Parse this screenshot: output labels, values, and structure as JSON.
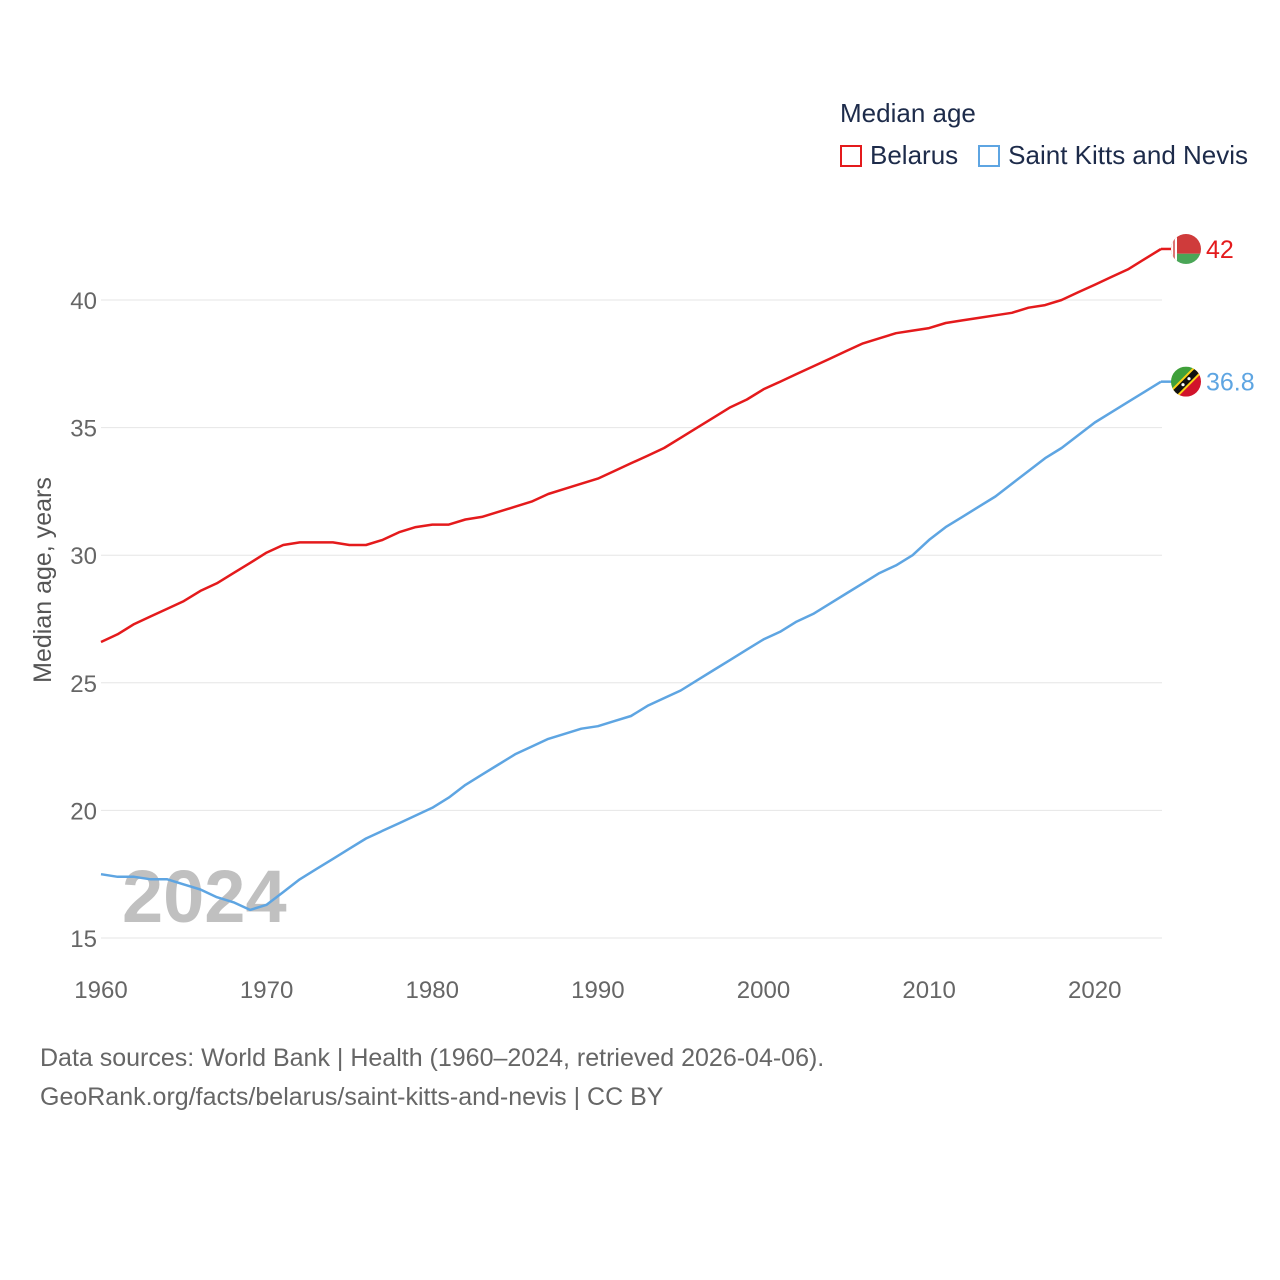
{
  "legend": {
    "title": "Median age"
  },
  "footer": {
    "line1": "Data sources: World Bank | Health (1960–2024, retrieved 2026-04-06).",
    "line2": "GeoRank.org/facts/belarus/saint-kitts-and-nevis | CC BY"
  },
  "chart_data": {
    "type": "line",
    "title": "Median age",
    "ylabel": "Median age, years",
    "xlabel": "",
    "year_watermark": "2024",
    "xlim": [
      1960,
      2024
    ],
    "ylim": [
      15,
      43
    ],
    "x_ticks": [
      1960,
      1970,
      1980,
      1990,
      2000,
      2010,
      2020
    ],
    "y_ticks": [
      15,
      20,
      25,
      30,
      35,
      40
    ],
    "grid": true,
    "legend_position": "top-right",
    "series": [
      {
        "name": "Belarus",
        "color": "#e41a1c",
        "end_label": "42",
        "x": [
          1960,
          1961,
          1962,
          1963,
          1964,
          1965,
          1966,
          1967,
          1968,
          1969,
          1970,
          1971,
          1972,
          1973,
          1974,
          1975,
          1976,
          1977,
          1978,
          1979,
          1980,
          1981,
          1982,
          1983,
          1984,
          1985,
          1986,
          1987,
          1988,
          1989,
          1990,
          1991,
          1992,
          1993,
          1994,
          1995,
          1996,
          1997,
          1998,
          1999,
          2000,
          2001,
          2002,
          2003,
          2004,
          2005,
          2006,
          2007,
          2008,
          2009,
          2010,
          2011,
          2012,
          2013,
          2014,
          2015,
          2016,
          2017,
          2018,
          2019,
          2020,
          2021,
          2022,
          2023,
          2024
        ],
        "values": [
          26.6,
          26.9,
          27.3,
          27.6,
          27.9,
          28.2,
          28.6,
          28.9,
          29.3,
          29.7,
          30.1,
          30.4,
          30.5,
          30.5,
          30.5,
          30.4,
          30.4,
          30.6,
          30.9,
          31.1,
          31.2,
          31.2,
          31.4,
          31.5,
          31.7,
          31.9,
          32.1,
          32.4,
          32.6,
          32.8,
          33.0,
          33.3,
          33.6,
          33.9,
          34.2,
          34.6,
          35.0,
          35.4,
          35.8,
          36.1,
          36.5,
          36.8,
          37.1,
          37.4,
          37.7,
          38.0,
          38.3,
          38.5,
          38.7,
          38.8,
          38.9,
          39.1,
          39.2,
          39.3,
          39.4,
          39.5,
          39.7,
          39.8,
          40.0,
          40.3,
          40.6,
          40.9,
          41.2,
          41.6,
          42.0
        ]
      },
      {
        "name": "Saint Kitts and Nevis",
        "color": "#5ea5e2",
        "end_label": "36.8",
        "x": [
          1960,
          1961,
          1962,
          1963,
          1964,
          1965,
          1966,
          1967,
          1968,
          1969,
          1970,
          1971,
          1972,
          1973,
          1974,
          1975,
          1976,
          1977,
          1978,
          1979,
          1980,
          1981,
          1982,
          1983,
          1984,
          1985,
          1986,
          1987,
          1988,
          1989,
          1990,
          1991,
          1992,
          1993,
          1994,
          1995,
          1996,
          1997,
          1998,
          1999,
          2000,
          2001,
          2002,
          2003,
          2004,
          2005,
          2006,
          2007,
          2008,
          2009,
          2010,
          2011,
          2012,
          2013,
          2014,
          2015,
          2016,
          2017,
          2018,
          2019,
          2020,
          2021,
          2022,
          2023,
          2024
        ],
        "values": [
          17.5,
          17.4,
          17.4,
          17.3,
          17.3,
          17.1,
          16.9,
          16.6,
          16.4,
          16.1,
          16.3,
          16.8,
          17.3,
          17.7,
          18.1,
          18.5,
          18.9,
          19.2,
          19.5,
          19.8,
          20.1,
          20.5,
          21.0,
          21.4,
          21.8,
          22.2,
          22.5,
          22.8,
          23.0,
          23.2,
          23.3,
          23.5,
          23.7,
          24.1,
          24.4,
          24.7,
          25.1,
          25.5,
          25.9,
          26.3,
          26.7,
          27.0,
          27.4,
          27.7,
          28.1,
          28.5,
          28.9,
          29.3,
          29.6,
          30.0,
          30.6,
          31.1,
          31.5,
          31.9,
          32.3,
          32.8,
          33.3,
          33.8,
          34.2,
          34.7,
          35.2,
          35.6,
          36.0,
          36.4,
          36.8
        ]
      }
    ]
  }
}
